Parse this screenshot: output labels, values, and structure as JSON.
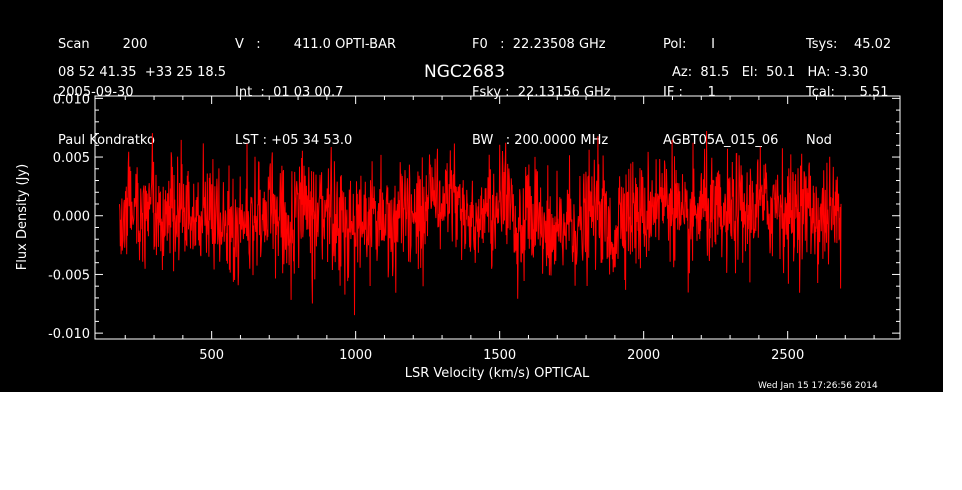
{
  "header": {
    "col1": [
      "Scan        200",
      "2005-09-30",
      "Paul Kondratko"
    ],
    "col2": [
      "V   :        411.0 OPTI-BAR",
      "Int  :  01 03 00.7",
      "LST : +05 34 53.0"
    ],
    "col3": [
      "F0   :  22.23508 GHz",
      "Fsky :  22.13156 GHz",
      "BW   : 200.0000 MHz"
    ],
    "col4": [
      "Pol:      I",
      "IF :      1",
      "AGBT05A_015_06"
    ],
    "col5": [
      "Tsys:    45.02",
      "Tcal:      5.51",
      "Nod"
    ],
    "coords": "08 52 41.35  +33 25 18.5",
    "source": "NGC2683",
    "azel": "Az:  81.5   El:  50.1   HA: -3.30"
  },
  "footer": {
    "timestamp": "Wed Jan 15 17:26:56 2014"
  },
  "colors": {
    "background": "#000000",
    "axes": "#ffffff",
    "trace": "#ff0000"
  },
  "chart_data": {
    "type": "line",
    "title": "NGC2683",
    "xlabel": "LSR Velocity (km/s) OPTICAL",
    "ylabel": "Flux Density (Jy)",
    "xlim": [
      95,
      2890
    ],
    "ylim": [
      -0.0105,
      0.0102
    ],
    "xticks": [
      500,
      1000,
      1500,
      2000,
      2500
    ],
    "xtick_labels": [
      "500",
      "1000",
      "1500",
      "2000",
      "2500"
    ],
    "yticks": [
      -0.01,
      -0.005,
      0.0,
      0.005,
      0.01
    ],
    "ytick_labels": [
      "-0.010",
      "-0.005",
      "0.000",
      "0.005",
      "0.010"
    ],
    "grid": false,
    "series": [
      {
        "x_range": [
          180,
          2685
        ],
        "noise_rms": 0.0023,
        "mean": 0.0,
        "y": [
          0.0,
          0.0013,
          -0.0006,
          0.0019,
          -0.0007,
          0.0016,
          0.0011,
          -0.0001,
          -0.0006,
          0.0005,
          0.0004,
          -0.0014,
          -0.0003,
          0.0001,
          0.0003,
          0.0002,
          -0.0013,
          0.0006,
          0.0004,
          0.0003,
          0.001,
          -0.0006,
          -0.0007,
          -0.0005,
          0.0,
          0.0,
          -0.0012,
          0.0,
          -0.0004,
          0.0002,
          0.0031,
          0.0005,
          0.0009,
          0.0005,
          -0.0002,
          0.0,
          0.0012,
          0.0022,
          -0.0018,
          -0.0001,
          -0.0005,
          -0.0026,
          -0.002,
          0.0,
          -0.0014,
          0.0,
          0.001,
          -0.0027,
          0.0008,
          0.0003,
          -0.0004,
          0.0014,
          0.0013,
          0.0015,
          -0.0018,
          -0.0001,
          0.001,
          -0.0004,
          -0.0005,
          0.0007,
          -0.0002,
          0.0014,
          0.0003,
          0.0016,
          -0.0002,
          0.0011,
          0.0005,
          -0.0004,
          0.0002,
          -0.0002
        ]
      }
    ]
  }
}
